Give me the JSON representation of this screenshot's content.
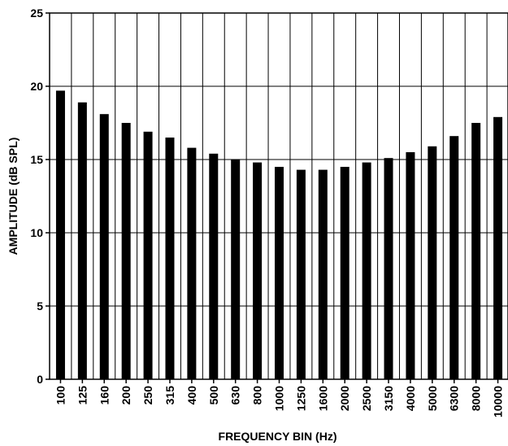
{
  "chart_data": {
    "type": "bar",
    "title": "",
    "xlabel": "FREQUENCY BIN (Hz)",
    "ylabel": "AMPLITUDE (dB SPL)",
    "categories": [
      "100",
      "125",
      "160",
      "200",
      "250",
      "315",
      "400",
      "500",
      "630",
      "800",
      "1000",
      "1250",
      "1600",
      "2000",
      "2500",
      "3150",
      "4000",
      "5000",
      "6300",
      "8000",
      "10000"
    ],
    "values": [
      19.7,
      18.9,
      18.1,
      17.5,
      16.9,
      16.5,
      15.8,
      15.4,
      15.0,
      14.8,
      14.5,
      14.3,
      14.3,
      14.5,
      14.8,
      15.1,
      15.5,
      15.9,
      16.6,
      17.5,
      17.9
    ],
    "ylim": [
      0,
      25
    ],
    "yticks": [
      "0",
      "5",
      "10",
      "15",
      "20",
      "25"
    ],
    "grid": true,
    "legend": "none",
    "bar_color": "#000000",
    "grid_color": "#000000"
  }
}
